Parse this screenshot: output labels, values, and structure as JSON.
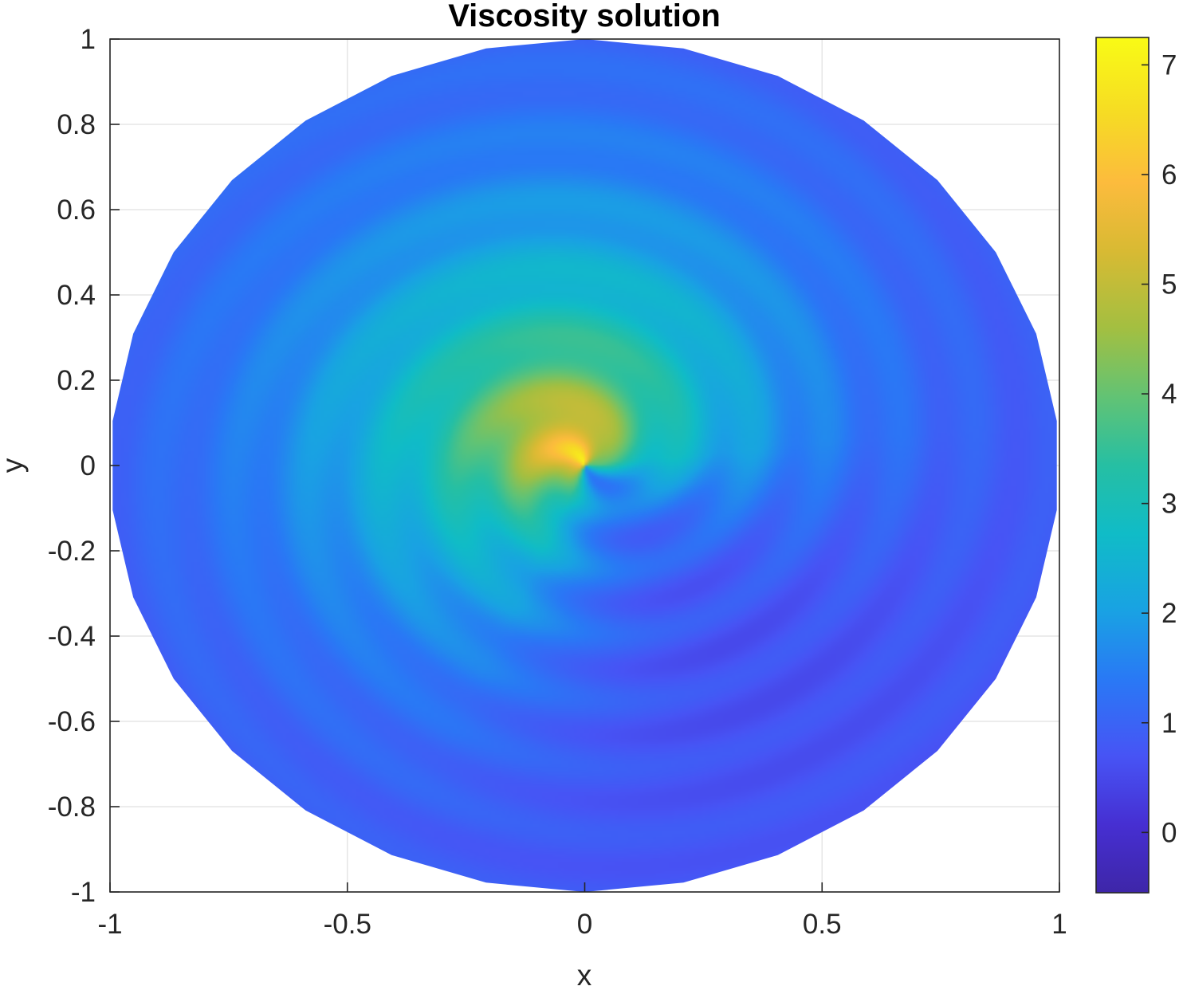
{
  "chart_data": {
    "type": "heatmap",
    "title": "Viscosity solution",
    "xlabel": "x",
    "ylabel": "y",
    "xlim": [
      -1,
      1
    ],
    "ylim": [
      -1,
      1
    ],
    "grid": true,
    "domain_shape": "disk of radius 1, polygonal boundary (30 sides)",
    "colormap": "parula",
    "color_limits": [
      -0.55,
      7.25
    ],
    "x_ticks": [
      -1,
      -0.5,
      0,
      0.5,
      1
    ],
    "x_tick_labels": [
      "-1",
      "-0.5",
      "0",
      "0.5",
      "1"
    ],
    "y_ticks": [
      -1,
      -0.8,
      -0.6,
      -0.4,
      -0.2,
      0,
      0.2,
      0.4,
      0.6,
      0.8,
      1
    ],
    "y_tick_labels": [
      "-1",
      "-0.8",
      "-0.6",
      "-0.4",
      "-0.2",
      "0",
      "0.2",
      "0.4",
      "0.6",
      "0.8",
      "1"
    ],
    "colorbar": {
      "ticks": [
        0,
        1,
        2,
        3,
        4,
        5,
        6,
        7
      ],
      "tick_labels": [
        "0",
        "1",
        "2",
        "3",
        "4",
        "5",
        "6",
        "7"
      ]
    },
    "value_notes": "max about 7 near origin (upper-left side), spiral rings, minimum about -0.4 in the lower-right region, about 0.6-1 near the boundary",
    "colors": {
      "grid": "#e6e6e6",
      "axes": "#262626",
      "low": "#3e26a8",
      "high": "#f9fb15"
    }
  }
}
